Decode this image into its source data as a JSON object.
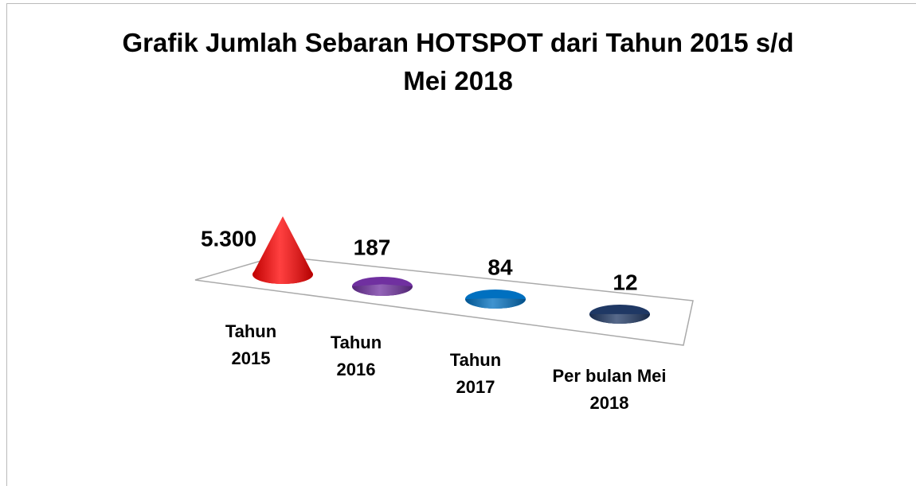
{
  "chart_data": {
    "type": "cone",
    "title": "Grafik Jumlah Sebaran HOTSPOT dari Tahun 2015 s/d Mei 2018",
    "categories": [
      "Tahun 2015",
      "Tahun 2016",
      "Tahun 2017",
      "Per bulan Mei 2018"
    ],
    "values": [
      5300,
      187,
      84,
      12
    ],
    "value_labels": [
      "5.300",
      "187",
      "84",
      "12"
    ],
    "colors": [
      "#ff0000",
      "#7030a0",
      "#0070c0",
      "#1f3864"
    ]
  }
}
